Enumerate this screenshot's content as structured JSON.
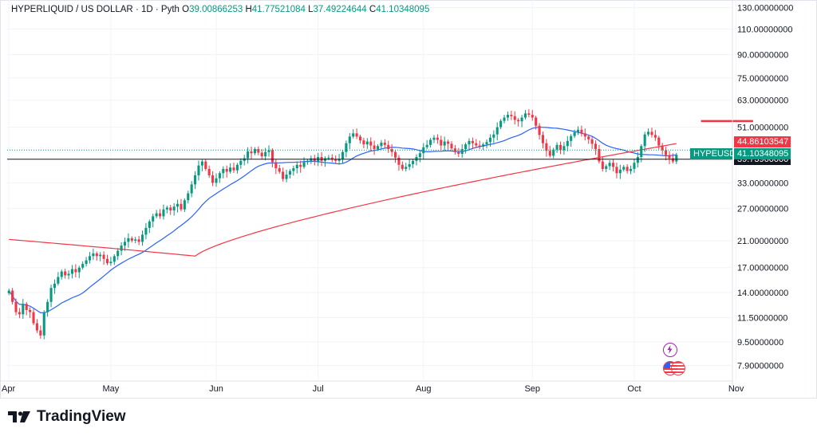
{
  "legend": {
    "symbol": "HYPERLIQUID / US DOLLAR",
    "interval": "1D",
    "source": "Pyth",
    "open_label": "O",
    "open_value": "39.00866253",
    "high_label": "H",
    "high_value": "41.77521084",
    "low_label": "L",
    "low_value": "37.49224644",
    "close_label": "C",
    "close_value": "41.10348095"
  },
  "tags": {
    "symbol_tag": "HYPEUSD",
    "red_price": "44.86103547",
    "green_price": "41.10348095",
    "black_price": "39.73960000"
  },
  "colors": {
    "up": "#089981",
    "down": "#f23645",
    "ma_fast": "#2962ff",
    "ma_slow": "#f23645",
    "grid": "#f0f3fa",
    "axis_text": "#131722"
  },
  "footer": {
    "brand": "TradingView",
    "logo_icon": "tradingview-logo-icon"
  },
  "icons": {
    "lightning": "lightning-icon",
    "flag": "us-flag-icon"
  },
  "chart_data": {
    "type": "candlestick",
    "title": "HYPERLIQUID / US DOLLAR · 1D · Pyth",
    "scale": "log",
    "y_range": [
      7.0,
      130.0
    ],
    "y_ticks": [
      "130.00000000",
      "110.00000000",
      "90.00000000",
      "75.00000000",
      "63.00000000",
      "51.00000000",
      "44.86103547",
      "41.10348095",
      "33.00000000",
      "27.00000000",
      "21.00000000",
      "17.00000000",
      "14.00000000",
      "11.50000000",
      "9.50000000",
      "7.90000000"
    ],
    "x_ticks": [
      "Apr",
      "May",
      "Jun",
      "Jul",
      "Aug",
      "Sep",
      "Oct",
      "Nov"
    ],
    "annotations": [
      {
        "label": "horizontal line",
        "value": 39.7
      },
      {
        "label": "red resistance segment",
        "value": 53.5
      }
    ],
    "series": [
      {
        "name": "Price (close)",
        "kind": "candles",
        "values": [
          14.2,
          13.0,
          12.0,
          11.8,
          12.8,
          12.2,
          12.0,
          11.0,
          10.4,
          10.0,
          12.0,
          13.0,
          14.5,
          15.0,
          15.8,
          16.5,
          16.0,
          16.2,
          16.8,
          16.4,
          17.0,
          17.5,
          18.0,
          18.6,
          19.0,
          18.6,
          18.8,
          18.2,
          17.6,
          17.8,
          18.6,
          19.4,
          20.2,
          20.8,
          21.4,
          21.0,
          21.2,
          20.8,
          22.0,
          23.2,
          24.4,
          25.4,
          26.0,
          25.4,
          26.8,
          27.2,
          26.6,
          27.4,
          28.0,
          26.8,
          28.8,
          30.4,
          32.6,
          35.0,
          37.8,
          39.0,
          36.8,
          35.0,
          33.0,
          34.2,
          35.6,
          36.8,
          36.0,
          37.2,
          36.4,
          38.0,
          39.2,
          40.0,
          42.2,
          41.6,
          43.0,
          41.8,
          40.6,
          42.0,
          42.6,
          38.8,
          37.0,
          36.0,
          34.0,
          35.2,
          36.2,
          37.0,
          38.0,
          37.4,
          38.8,
          39.2,
          40.0,
          39.0,
          40.4,
          39.2,
          40.0,
          40.2,
          39.6,
          39.2,
          39.8,
          42.0,
          45.0,
          47.4,
          48.6,
          47.4,
          46.0,
          44.6,
          45.6,
          44.2,
          43.0,
          44.0,
          45.2,
          44.4,
          43.0,
          42.0,
          40.2,
          38.0,
          36.8,
          37.4,
          38.2,
          39.2,
          40.4,
          41.6,
          43.6,
          44.4,
          46.2,
          47.0,
          46.2,
          44.2,
          45.6,
          44.8,
          43.2,
          42.0,
          41.4,
          43.0,
          44.6,
          45.8,
          45.0,
          44.2,
          43.8,
          44.6,
          45.4,
          47.0,
          48.2,
          51.0,
          53.6,
          55.0,
          56.2,
          55.6,
          54.0,
          53.4,
          55.0,
          56.8,
          56.2,
          55.0,
          51.6,
          48.0,
          45.0,
          42.4,
          40.8,
          42.8,
          44.4,
          42.6,
          44.0,
          45.8,
          47.6,
          49.0,
          50.0,
          48.6,
          47.4,
          46.4,
          44.8,
          43.0,
          39.0,
          36.8,
          37.6,
          38.6,
          37.4,
          35.6,
          36.6,
          37.4,
          36.2,
          36.8,
          38.6,
          40.4,
          44.0,
          48.2,
          49.2,
          48.0,
          47.0,
          44.2,
          42.6,
          41.0,
          40.0,
          39.0,
          41.1
        ]
      },
      {
        "name": "Fast MA",
        "kind": "line",
        "color": "#2962ff"
      },
      {
        "name": "Slow MA",
        "kind": "line",
        "color": "#f23645"
      }
    ]
  }
}
